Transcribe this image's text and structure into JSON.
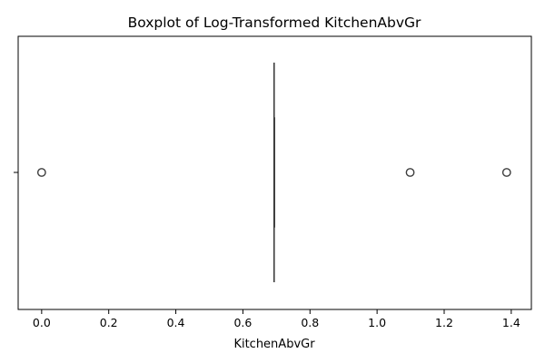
{
  "chart_data": {
    "type": "boxplot",
    "title": "Boxplot of Log-Transformed KitchenAbvGr",
    "xlabel": "KitchenAbvGr",
    "ylabel": "",
    "orientation": "horizontal",
    "xlim": [
      -0.07,
      1.46
    ],
    "x_ticks": [
      0.0,
      0.2,
      0.4,
      0.6,
      0.8,
      1.0,
      1.2,
      1.4
    ],
    "x_tick_labels": [
      "0.0",
      "0.2",
      "0.4",
      "0.6",
      "0.8",
      "1.0",
      "1.2",
      "1.4"
    ],
    "grid": false,
    "box": {
      "q1": 0.693,
      "median": 0.693,
      "q3": 0.693,
      "whisker_low": 0.693,
      "whisker_high": 0.693
    },
    "outliers": [
      0.0,
      1.0986,
      1.3863
    ],
    "colors": {
      "line": "#3d3d3d",
      "outlier_edge": "#3d3d3d",
      "axes": "#000000"
    }
  }
}
